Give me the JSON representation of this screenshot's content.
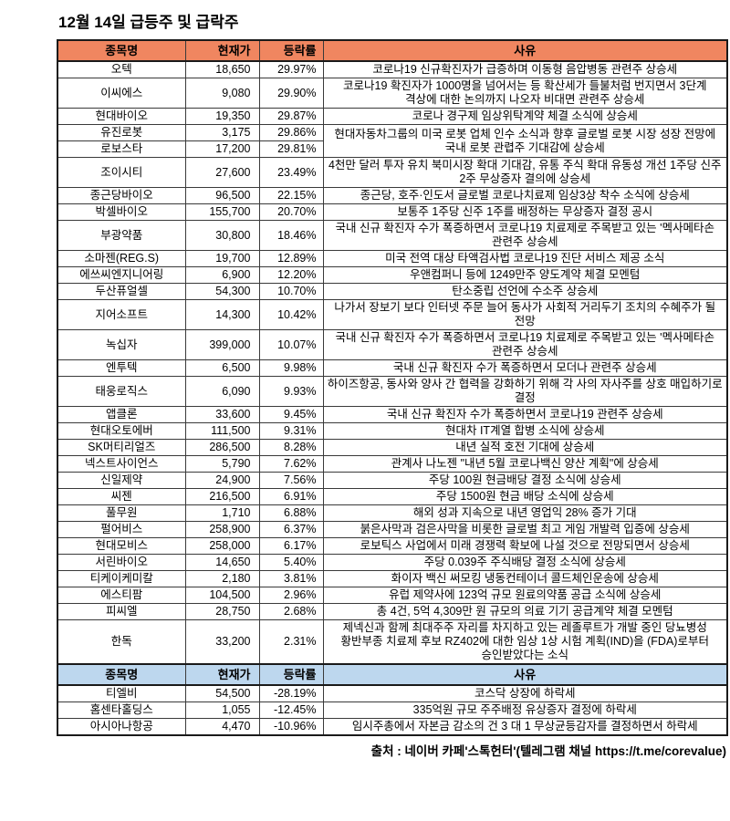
{
  "title": "12월 14일 급등주 및 급락주",
  "source": "출처 : 네이버 카페'스톡헌터'(텔레그램 채널 https://t.me/corevalue)",
  "columns": [
    "종목명",
    "현재가",
    "등락률",
    "사유"
  ],
  "colors": {
    "gainers_header_bg": "#F08660",
    "losers_header_bg": "#BDD7EE",
    "border": "#1a1a1a"
  },
  "gainers": [
    {
      "name": "오텍",
      "price": "18,650",
      "change": "29.97%",
      "reason": "코로나19 신규확진자가 급증하며 이동형 음압병동 관련주 상승세"
    },
    {
      "name": "이씨에스",
      "price": "9,080",
      "change": "29.90%",
      "reason": "코로나19 확진자가 1000명을 넘어서는 등 확산세가 들불처럼 번지면서 3단계 격상에 대한 논의까지 나오자 비대면 관련주 상승세"
    },
    {
      "name": "현대바이오",
      "price": "19,350",
      "change": "29.87%",
      "reason": "코로나 경구제 임상위탁계약 체결 소식에 상승세"
    },
    {
      "name": "유진로봇",
      "price": "3,175",
      "change": "29.86%",
      "reason": "현대자동차그룹의 미국 로봇 업체 인수 소식과 향후 글로벌 로봇 시장 성장 전망에 국내 로봇 관렵주 기대감에 상승세",
      "reason_rowspan": 2
    },
    {
      "name": "로보스타",
      "price": "17,200",
      "change": "29.81%",
      "reason": null
    },
    {
      "name": "조이시티",
      "price": "27,600",
      "change": "23.49%",
      "reason": "4천만 달러 투자 유치 북미시장 확대 기대감, 유통 주식 확대 유동성 개선  1주당 신주 2주 무상증자 결의에 상승세"
    },
    {
      "name": "종근당바이오",
      "price": "96,500",
      "change": "22.15%",
      "reason": "종근당, 호주·인도서 글로벌 코로나치료제 임상3상 착수 소식에 상승세"
    },
    {
      "name": "박셀바이오",
      "price": "155,700",
      "change": "20.70%",
      "reason": "보통주 1주당 신주 1주를 배정하는 무상증자 결정 공시"
    },
    {
      "name": "부광약품",
      "price": "30,800",
      "change": "18.46%",
      "reason": "국내 신규 확진자 수가 폭증하면서 코로나19 치료제로 주목받고 있는 '멕사메타손 관련주 상승세"
    },
    {
      "name": "소마젠(REG.S)",
      "price": "19,700",
      "change": "12.89%",
      "reason": "미국 전역 대상 타액검사법 코로나19 진단 서비스 제공 소식"
    },
    {
      "name": "에쓰씨엔지니어링",
      "price": "6,900",
      "change": "12.20%",
      "reason": "우앤컴퍼니 등에 1249만주 양도계약 체결 모멘텀"
    },
    {
      "name": "두산퓨얼셀",
      "price": "54,300",
      "change": "10.70%",
      "reason": "탄소중립 선언에 수소주 상승세"
    },
    {
      "name": "지어소프트",
      "price": "14,300",
      "change": "10.42%",
      "reason": "나가서 장보기 보다 인터넷 주문 늘어 동사가 사회적 거리두기 조치의 수혜주가 될 전망"
    },
    {
      "name": "녹십자",
      "price": "399,000",
      "change": "10.07%",
      "reason": "국내 신규 확진자 수가 폭증하면서 코로나19 치료제로 주목받고 있는 '멕사메타손 관련주 상승세"
    },
    {
      "name": "엔투텍",
      "price": "6,500",
      "change": "9.98%",
      "reason": "국내 신규 확진자 수가 폭증하면서 모더나 관련주 상승세"
    },
    {
      "name": "태웅로직스",
      "price": "6,090",
      "change": "9.93%",
      "reason": "하이즈항공, 동사와 양사 간 협력을 강화하기 위해 각 사의 자사주를 상호 매입하기로 결정"
    },
    {
      "name": "앱클론",
      "price": "33,600",
      "change": "9.45%",
      "reason": "국내 신규 확진자 수가 폭증하면서 코로나19 관련주 상승세"
    },
    {
      "name": "현대오토에버",
      "price": "111,500",
      "change": "9.31%",
      "reason": "현대차 IT계열 합병 소식에 상승세"
    },
    {
      "name": "SK머티리얼즈",
      "price": "286,500",
      "change": "8.28%",
      "reason": "내년 실적 호전 기대에 상승세"
    },
    {
      "name": "넥스트사이언스",
      "price": "5,790",
      "change": "7.62%",
      "reason": "관계사 나노젠 \"내년 5월 코로나백신 양산 계획\"에 상승세"
    },
    {
      "name": "신일제약",
      "price": "24,900",
      "change": "7.56%",
      "reason": "주당 100원 현금배당 결정 소식에 상승세"
    },
    {
      "name": "씨젠",
      "price": "216,500",
      "change": "6.91%",
      "reason": "주당 1500원 현금 배당 소식에 상승세"
    },
    {
      "name": "풀무원",
      "price": "1,710",
      "change": "6.88%",
      "reason": "해외 성과 지속으로 내년 영업익 28% 증가 기대"
    },
    {
      "name": "펄어비스",
      "price": "258,900",
      "change": "6.37%",
      "reason": "붉은사막과 검은사막을 비롯한 글로벌 최고 게임 개발력 입증에 상승세"
    },
    {
      "name": "현대모비스",
      "price": "258,000",
      "change": "6.17%",
      "reason": "로보틱스 사업에서 미래 경쟁력 확보에 나설 것으로 전망되면서 상승세"
    },
    {
      "name": "서린바이오",
      "price": "14,650",
      "change": "5.40%",
      "reason": "주당 0.039주 주식배당 결정 소식에 상승세"
    },
    {
      "name": "티케이케미칼",
      "price": "2,180",
      "change": "3.81%",
      "reason": "화이자 백신 써모킹 냉동컨테이너 콜드체인운송에 상승세"
    },
    {
      "name": "에스티팜",
      "price": "104,500",
      "change": "2.96%",
      "reason": "유럽 제약사에 123억 규모 원료의약품 공급 소식에 상승세"
    },
    {
      "name": "피씨엘",
      "price": "28,750",
      "change": "2.68%",
      "reason": "총 4건, 5억 4,309만 원 규모의 의료 기기 공급계약 체결 모멘텀"
    },
    {
      "name": "한독",
      "price": "33,200",
      "change": "2.31%",
      "reason": "제넥신과 함께 최대주주 자리를 차지하고 있는 레졸루트가 개발 중인 당뇨병성 황반부종 치료제 후보 RZ402에 대한 임상 1상 시험 계획(IND)을 (FDA)로부터 승인받았다는 소식"
    }
  ],
  "losers": [
    {
      "name": "티엘비",
      "price": "54,500",
      "change": "-28.19%",
      "reason": "코스닥 상장에 하락세"
    },
    {
      "name": "홈센타홀딩스",
      "price": "1,055",
      "change": "-12.45%",
      "reason": "335억원 규모 주주배정 유상증자 결정에 하락세"
    },
    {
      "name": "아시아나항공",
      "price": "4,470",
      "change": "-10.96%",
      "reason": "임시주총에서 자본금 감소의 건 3 대 1 무상균등감자를 결정하면서 하락세"
    }
  ]
}
